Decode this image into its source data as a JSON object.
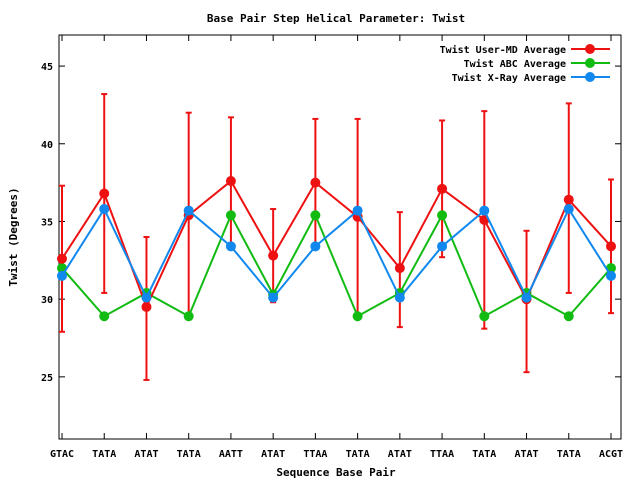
{
  "chart_data": {
    "type": "line",
    "title": "Base Pair Step Helical Parameter: Twist",
    "xlabel": "Sequence Base Pair",
    "ylabel": "Twist (Degrees)",
    "categories": [
      "GTAC",
      "TATA",
      "ATAT",
      "TATA",
      "AATT",
      "ATAT",
      "TTAA",
      "TATA",
      "ATAT",
      "TTAA",
      "TATA",
      "ATAT",
      "TATA",
      "ACGT"
    ],
    "ylim": [
      21,
      47
    ],
    "yticks": [
      25,
      30,
      35,
      40,
      45
    ],
    "grid": false,
    "legend_position": "top-right",
    "series": [
      {
        "name": "Twist User-MD Average",
        "color": "#ee1111",
        "values": [
          32.6,
          36.8,
          29.5,
          35.4,
          37.6,
          32.8,
          37.5,
          35.3,
          32.0,
          37.1,
          35.1,
          30.0,
          36.4,
          33.4
        ],
        "error_low": [
          27.9,
          30.4,
          24.8,
          28.7,
          33.5,
          29.8,
          33.4,
          28.9,
          28.2,
          32.7,
          28.1,
          25.3,
          30.4,
          29.1
        ],
        "error_high": [
          37.3,
          43.2,
          34.0,
          42.0,
          41.7,
          35.8,
          41.6,
          41.6,
          35.6,
          41.5,
          42.1,
          34.4,
          42.6,
          37.7
        ]
      },
      {
        "name": "Twist ABC Average",
        "color": "#11bb11",
        "values": [
          32.0,
          28.9,
          30.4,
          28.9,
          35.4,
          30.3,
          35.4,
          28.9,
          30.4,
          35.4,
          28.9,
          30.4,
          28.9,
          32.0
        ]
      },
      {
        "name": "Twist X-Ray Average",
        "color": "#1188ee",
        "values": [
          31.5,
          35.8,
          30.1,
          35.7,
          33.4,
          30.1,
          33.4,
          35.7,
          30.1,
          33.4,
          35.7,
          30.1,
          35.8,
          31.5
        ]
      }
    ]
  }
}
